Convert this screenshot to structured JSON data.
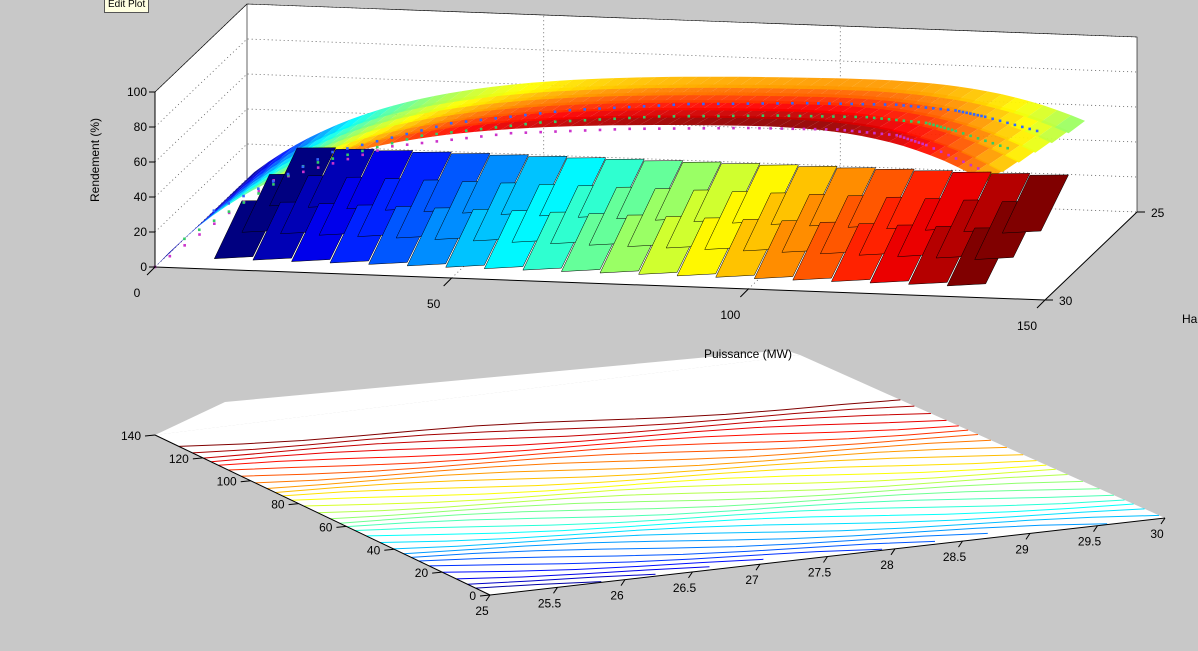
{
  "toolbar": {
    "tooltip": "Edit Plot"
  },
  "colors": {
    "background": "#c8c8c8",
    "axes_face": "#ffffff",
    "series_marker_1": "#cc33cc",
    "series_marker_2": "#33cc66",
    "series_marker_3": "#3366ff"
  },
  "chart_data": [
    {
      "type": "surface",
      "view": "3d",
      "ylabel": "Rendement (%)",
      "xlabel": "",
      "zlabel_partial": "Ha",
      "xlim": [
        0,
        150
      ],
      "ylim": [
        0,
        100
      ],
      "hlim": [
        25,
        30
      ],
      "xticks": [
        "0",
        "50",
        "100",
        "150"
      ],
      "yticks": [
        "0",
        "20",
        "40",
        "60",
        "80",
        "100"
      ],
      "hticks": [
        "25",
        "30"
      ],
      "colormap": "jet",
      "grid": true,
      "series": [
        {
          "name": "",
          "marker": "dotted",
          "x": [
            0,
            20,
            40,
            60,
            80,
            100,
            115,
            125,
            130,
            140
          ],
          "values": [
            0,
            52,
            74,
            84,
            89,
            92,
            93,
            91,
            86,
            72
          ]
        },
        {
          "name": "",
          "marker": "dotted",
          "x": [
            0,
            20,
            40,
            60,
            80,
            100,
            115,
            125,
            130,
            140
          ],
          "values": [
            0,
            44,
            64,
            74,
            80,
            83,
            84,
            82,
            78,
            68
          ]
        },
        {
          "name": "",
          "marker": "dotted",
          "x": [
            0,
            20,
            40,
            60,
            80,
            100,
            115,
            125,
            130,
            140
          ],
          "values": [
            0,
            36,
            55,
            65,
            71,
            74,
            75,
            73,
            70,
            62
          ]
        }
      ]
    },
    {
      "type": "contour",
      "view": "3d",
      "title": "Puissance (MW)",
      "xlim": [
        25,
        30
      ],
      "ylim": [
        0,
        140
      ],
      "xticks": [
        "25",
        "25.5",
        "26",
        "26.5",
        "27",
        "27.5",
        "28",
        "28.5",
        "29",
        "29.5",
        "30"
      ],
      "yticks": [
        "0",
        "20",
        "40",
        "60",
        "80",
        "100",
        "120",
        "140"
      ],
      "colormap": "jet",
      "levels": 30
    }
  ]
}
